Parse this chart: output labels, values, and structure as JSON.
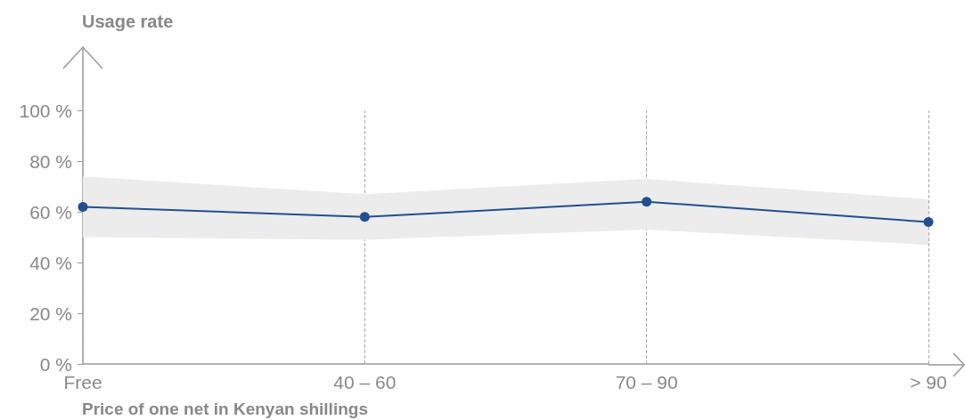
{
  "chart_data": {
    "type": "line",
    "xlabel": "Price of one net in Kenyan shillings",
    "ylabel": "Usage rate",
    "categories": [
      "Free",
      "40 – 60",
      "70 – 90",
      "> 90"
    ],
    "series": [
      {
        "color": "#22508f",
        "values": [
          62,
          58,
          64,
          56
        ],
        "lower": [
          50,
          49,
          53,
          47
        ],
        "upper": [
          74,
          67,
          73,
          65
        ]
      }
    ],
    "ylim": [
      0,
      125
    ],
    "yticks": [
      {
        "value": 0,
        "label": "0 %"
      },
      {
        "value": 20,
        "label": "20 %"
      },
      {
        "value": 40,
        "label": "40 %"
      },
      {
        "value": 60,
        "label": "60 %"
      },
      {
        "value": 80,
        "label": "80 %"
      },
      {
        "value": 100,
        "label": "100 %"
      }
    ],
    "grid": "x",
    "marker": "circle",
    "line_style": "solid"
  }
}
